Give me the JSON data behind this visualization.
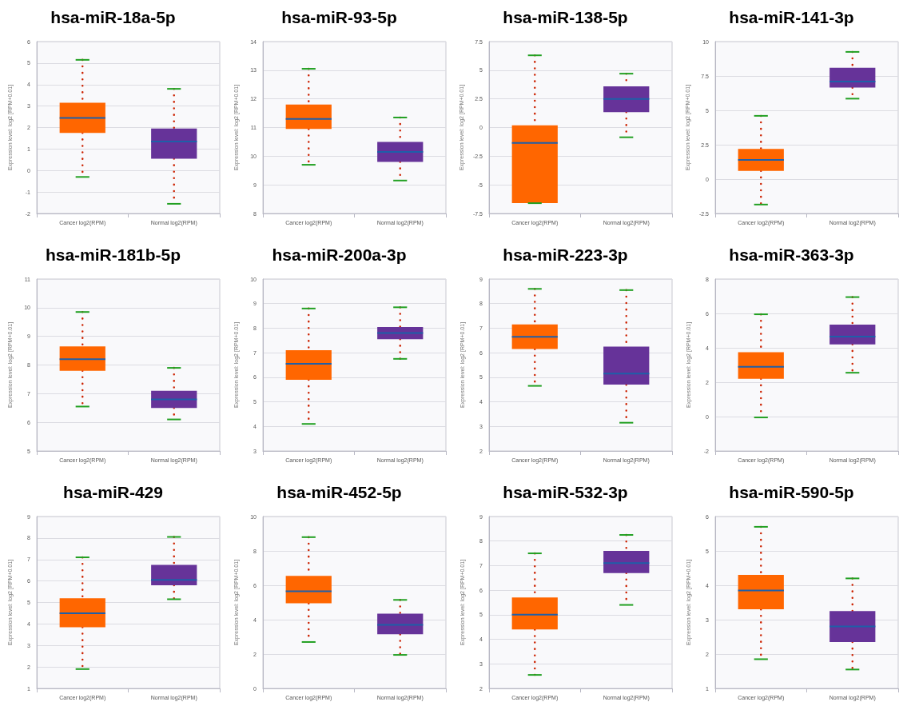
{
  "chart_data": [
    {
      "type": "box",
      "title": "hsa-miR-18a-5p",
      "ylabel": "Expression level: log2 [RPM+0.01]",
      "categories": [
        "Cancer log2(RPM)",
        "Normal log2(RPM)"
      ],
      "colors": [
        "#ff6600",
        "#663399"
      ],
      "ylim": [
        -2,
        6
      ],
      "yticks": [
        -2,
        -1,
        0,
        1,
        2,
        3,
        4,
        5,
        6
      ],
      "grid": "y",
      "boxes": [
        {
          "low": -0.3,
          "q1": 1.75,
          "median": 2.45,
          "q3": 3.15,
          "high": 5.15
        },
        {
          "low": -1.55,
          "q1": 0.55,
          "median": 1.35,
          "q3": 1.95,
          "high": 3.8
        }
      ]
    },
    {
      "type": "box",
      "title": "hsa-miR-93-5p",
      "ylabel": "Expression level: log2 [RPM+0.01]",
      "categories": [
        "Cancer log2(RPM)",
        "Normal log2(RPM)"
      ],
      "colors": [
        "#ff6600",
        "#663399"
      ],
      "ylim": [
        8,
        14
      ],
      "yticks": [
        8,
        9,
        10,
        11,
        12,
        13,
        14
      ],
      "grid": "y",
      "boxes": [
        {
          "low": 9.7,
          "q1": 10.95,
          "median": 11.3,
          "q3": 11.8,
          "high": 13.05
        },
        {
          "low": 9.15,
          "q1": 9.8,
          "median": 10.15,
          "q3": 10.5,
          "high": 11.35
        }
      ]
    },
    {
      "type": "box",
      "title": "hsa-miR-138-5p",
      "ylabel": "Expression level: log2 [RPM+0.01]",
      "categories": [
        "Cancer log2(RPM)",
        "Normal log2(RPM)"
      ],
      "colors": [
        "#ff6600",
        "#663399"
      ],
      "ylim": [
        -7.5,
        7.5
      ],
      "yticks": [
        -7.5,
        -5,
        -2.5,
        0,
        2.5,
        5,
        7.5
      ],
      "grid": "y",
      "boxes": [
        {
          "low": -6.6,
          "q1": -6.6,
          "median": -1.35,
          "q3": 0.2,
          "high": 6.3
        },
        {
          "low": -0.85,
          "q1": 1.35,
          "median": 2.5,
          "q3": 3.6,
          "high": 4.7
        }
      ]
    },
    {
      "type": "box",
      "title": "hsa-miR-141-3p",
      "ylabel": "Expression level: log2 [RPM+0.01]",
      "categories": [
        "Cancer log2(RPM)",
        "Normal log2(RPM)"
      ],
      "colors": [
        "#ff6600",
        "#663399"
      ],
      "ylim": [
        -2.5,
        10
      ],
      "yticks": [
        -2.5,
        0,
        2.5,
        5,
        7.5,
        10
      ],
      "grid": "y",
      "boxes": [
        {
          "low": -1.85,
          "q1": 0.6,
          "median": 1.4,
          "q3": 2.2,
          "high": 4.6
        },
        {
          "low": 5.85,
          "q1": 6.65,
          "median": 7.1,
          "q3": 8.1,
          "high": 9.25
        }
      ]
    },
    {
      "type": "box",
      "title": "hsa-miR-181b-5p",
      "ylabel": "Expression level: log2 [RPM+0.01]",
      "categories": [
        "Cancer log2(RPM)",
        "Normal log2(RPM)"
      ],
      "colors": [
        "#ff6600",
        "#663399"
      ],
      "ylim": [
        5,
        11
      ],
      "yticks": [
        5,
        6,
        7,
        8,
        9,
        10,
        11
      ],
      "grid": "y",
      "boxes": [
        {
          "low": 6.55,
          "q1": 7.8,
          "median": 8.2,
          "q3": 8.65,
          "high": 9.85
        },
        {
          "low": 6.1,
          "q1": 6.5,
          "median": 6.8,
          "q3": 7.1,
          "high": 7.9
        }
      ]
    },
    {
      "type": "box",
      "title": "hsa-miR-200a-3p",
      "ylabel": "Expression level: log2 [RPM+0.01]",
      "categories": [
        "Cancer log2(RPM)",
        "Normal log2(RPM)"
      ],
      "colors": [
        "#ff6600",
        "#663399"
      ],
      "ylim": [
        3,
        10
      ],
      "yticks": [
        3,
        4,
        5,
        6,
        7,
        8,
        9,
        10
      ],
      "grid": "y",
      "boxes": [
        {
          "low": 4.1,
          "q1": 5.9,
          "median": 6.55,
          "q3": 7.1,
          "high": 8.8
        },
        {
          "low": 6.75,
          "q1": 7.55,
          "median": 7.8,
          "q3": 8.05,
          "high": 8.85
        }
      ]
    },
    {
      "type": "box",
      "title": "hsa-miR-223-3p",
      "ylabel": "Expression level: log2 [RPM+0.01]",
      "categories": [
        "Cancer log2(RPM)",
        "Normal log2(RPM)"
      ],
      "colors": [
        "#ff6600",
        "#663399"
      ],
      "ylim": [
        2,
        9
      ],
      "yticks": [
        2,
        3,
        4,
        5,
        6,
        7,
        8,
        9
      ],
      "grid": "y",
      "boxes": [
        {
          "low": 4.65,
          "q1": 6.15,
          "median": 6.65,
          "q3": 7.15,
          "high": 8.6
        },
        {
          "low": 3.15,
          "q1": 4.7,
          "median": 5.15,
          "q3": 6.25,
          "high": 8.55
        }
      ]
    },
    {
      "type": "box",
      "title": "hsa-miR-363-3p",
      "ylabel": "Expression level: log2 [RPM+0.01]",
      "categories": [
        "Cancer log2(RPM)",
        "Normal log2(RPM)"
      ],
      "colors": [
        "#ff6600",
        "#663399"
      ],
      "ylim": [
        -2,
        8
      ],
      "yticks": [
        -2,
        0,
        2,
        4,
        6,
        8
      ],
      "grid": "y",
      "boxes": [
        {
          "low": -0.05,
          "q1": 2.2,
          "median": 2.9,
          "q3": 3.75,
          "high": 5.95
        },
        {
          "low": 2.55,
          "q1": 4.2,
          "median": 4.65,
          "q3": 5.35,
          "high": 6.95
        }
      ]
    },
    {
      "type": "box",
      "title": "hsa-miR-429",
      "ylabel": "Expression level: log2 [RPM+0.01]",
      "categories": [
        "Cancer log2(RPM)",
        "Normal log2(RPM)"
      ],
      "colors": [
        "#ff6600",
        "#663399"
      ],
      "ylim": [
        1,
        9
      ],
      "yticks": [
        1,
        2,
        3,
        4,
        5,
        6,
        7,
        8,
        9
      ],
      "grid": "y",
      "boxes": [
        {
          "low": 1.9,
          "q1": 3.85,
          "median": 4.5,
          "q3": 5.2,
          "high": 7.1
        },
        {
          "low": 5.15,
          "q1": 5.8,
          "median": 6.05,
          "q3": 6.75,
          "high": 8.05
        }
      ]
    },
    {
      "type": "box",
      "title": "hsa-miR-452-5p",
      "ylabel": "Expression level: log2 [RPM+0.01]",
      "categories": [
        "Cancer log2(RPM)",
        "Normal log2(RPM)"
      ],
      "colors": [
        "#ff6600",
        "#663399"
      ],
      "ylim": [
        0,
        10
      ],
      "yticks": [
        0,
        2,
        4,
        6,
        8,
        10
      ],
      "grid": "y",
      "boxes": [
        {
          "low": 2.7,
          "q1": 4.95,
          "median": 5.65,
          "q3": 6.55,
          "high": 8.8
        },
        {
          "low": 1.95,
          "q1": 3.15,
          "median": 3.7,
          "q3": 4.35,
          "high": 5.15
        }
      ]
    },
    {
      "type": "box",
      "title": "hsa-miR-532-3p",
      "ylabel": "Expression level: log2 [RPM+0.01]",
      "categories": [
        "Cancer log2(RPM)",
        "Normal log2(RPM)"
      ],
      "colors": [
        "#ff6600",
        "#663399"
      ],
      "ylim": [
        2,
        9
      ],
      "yticks": [
        2,
        3,
        4,
        5,
        6,
        7,
        8,
        9
      ],
      "grid": "y",
      "boxes": [
        {
          "low": 2.55,
          "q1": 4.4,
          "median": 5.0,
          "q3": 5.7,
          "high": 7.5
        },
        {
          "low": 5.4,
          "q1": 6.7,
          "median": 7.1,
          "q3": 7.6,
          "high": 8.25
        }
      ]
    },
    {
      "type": "box",
      "title": "hsa-miR-590-5p",
      "ylabel": "Expression level: log2 [RPM+0.01]",
      "categories": [
        "Cancer log2(RPM)",
        "Normal log2(RPM)"
      ],
      "colors": [
        "#ff6600",
        "#663399"
      ],
      "ylim": [
        1,
        6
      ],
      "yticks": [
        1,
        2,
        3,
        4,
        5,
        6
      ],
      "grid": "y",
      "boxes": [
        {
          "low": 1.85,
          "q1": 3.3,
          "median": 3.85,
          "q3": 4.3,
          "high": 5.7
        },
        {
          "low": 1.55,
          "q1": 2.35,
          "median": 2.8,
          "q3": 3.25,
          "high": 4.2
        }
      ]
    }
  ]
}
